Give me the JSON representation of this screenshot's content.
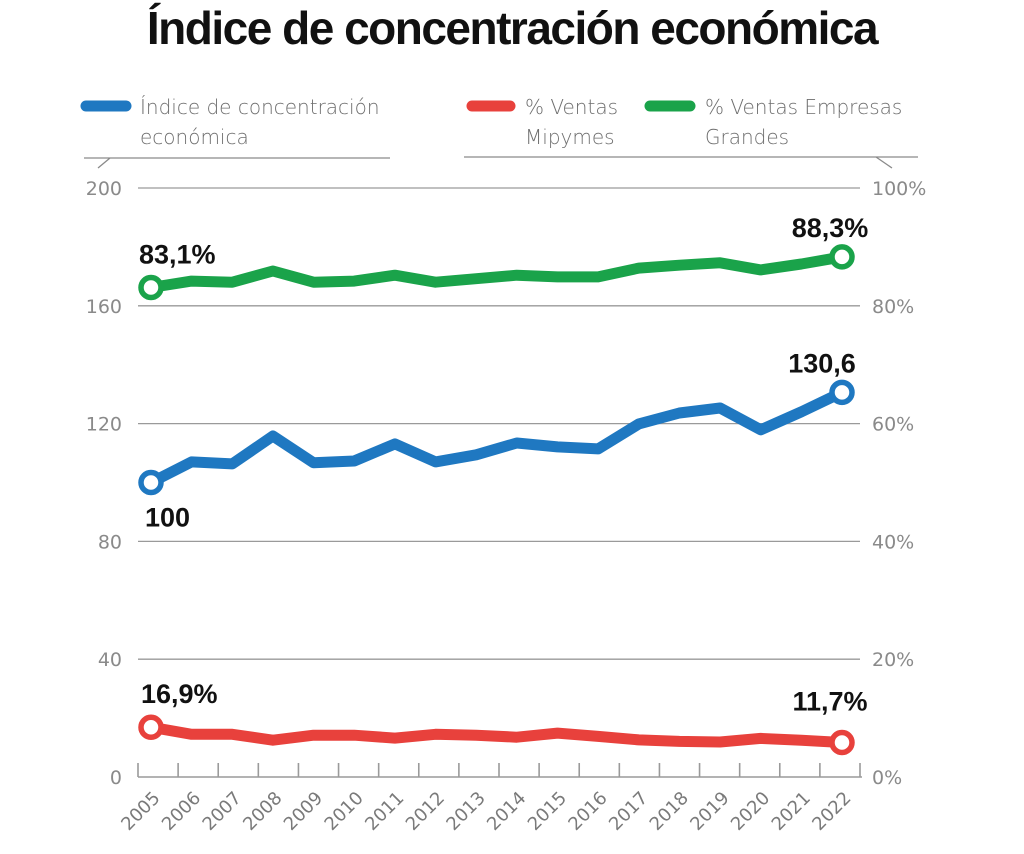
{
  "chart_data": {
    "type": "line",
    "title": "Índice de concentración económica",
    "categories": [
      "2005",
      "2006",
      "2007",
      "2008",
      "2009",
      "2010",
      "2011",
      "2012",
      "2013",
      "2014",
      "2015",
      "2016",
      "2017",
      "2018",
      "2019",
      "2020",
      "2021",
      "2022"
    ],
    "series": [
      {
        "name": "Índice de concentración económica",
        "legend_lines": [
          "Índice de concentración",
          "económica"
        ],
        "axis": "left",
        "color": "#1f78c1",
        "values": [
          100,
          107.0,
          106.3,
          115.8,
          106.7,
          107.3,
          113.1,
          107.0,
          109.4,
          113.4,
          112.1,
          111.4,
          119.9,
          123.6,
          125.3,
          117.9,
          124.0,
          130.6
        ],
        "labels": {
          "first": "100",
          "last": "130,6"
        }
      },
      {
        "name": "% Ventas Mipymes",
        "legend_lines": [
          "% Ventas",
          "Mipymes"
        ],
        "axis": "left",
        "color": "#e8413c",
        "values": [
          16.9,
          14.5,
          14.5,
          12.5,
          14.2,
          14.2,
          13.2,
          14.5,
          14.2,
          13.5,
          14.9,
          13.8,
          12.6,
          12.1,
          11.9,
          13.1,
          12.5,
          11.7
        ],
        "labels": {
          "first": "16,9%",
          "last": "11,7%"
        }
      },
      {
        "name": "% Ventas Empresas Grandes",
        "legend_lines": [
          "% Ventas Empresas",
          "Grandes"
        ],
        "axis": "right",
        "color": "#1aa34a",
        "values": [
          83.1,
          84.2,
          84.0,
          85.9,
          84.0,
          84.2,
          85.2,
          84.0,
          84.6,
          85.2,
          84.9,
          84.9,
          86.4,
          86.9,
          87.3,
          86.1,
          87.1,
          88.3
        ],
        "labels": {
          "first": "83,1%",
          "last": "88,3%"
        }
      }
    ],
    "y_left": {
      "ticks": [
        "0",
        "40",
        "80",
        "120",
        "160",
        "200"
      ],
      "range": [
        0,
        200
      ]
    },
    "y_right": {
      "ticks": [
        "0%",
        "20%",
        "40%",
        "60%",
        "80%",
        "100%"
      ],
      "range": [
        0,
        100
      ]
    },
    "xlabel": "",
    "ylabel": "",
    "grid": true,
    "legend_position": "top"
  }
}
